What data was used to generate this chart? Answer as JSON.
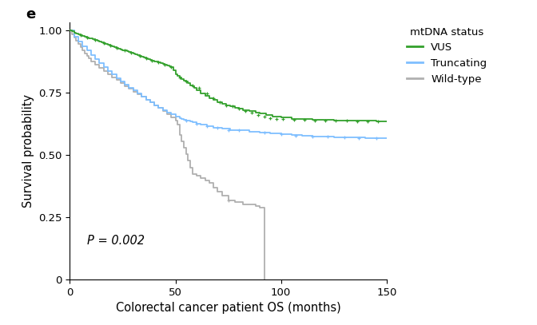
{
  "title_label": "e",
  "xlabel": "Colorectal cancer patient OS (months)",
  "ylabel": "Survival probability",
  "pvalue_text": "P = 0.002",
  "legend_title": "mtDNA status",
  "legend_entries": [
    "VUS",
    "Truncating",
    "Wild-type"
  ],
  "colors": {
    "VUS": "#33a02c",
    "Truncating": "#7fbfff",
    "Wild-type": "#b0b0b0"
  },
  "xlim": [
    0,
    150
  ],
  "ylim": [
    0,
    1.03
  ],
  "xticks": [
    0,
    50,
    100,
    150
  ],
  "yticks": [
    0,
    0.25,
    0.5,
    0.75,
    1.0
  ],
  "VUS_x": [
    0,
    1,
    2,
    3,
    4,
    5,
    6,
    7,
    8,
    9,
    10,
    11,
    12,
    13,
    14,
    15,
    16,
    17,
    18,
    19,
    20,
    21,
    22,
    23,
    24,
    25,
    26,
    27,
    28,
    29,
    30,
    31,
    32,
    33,
    34,
    35,
    36,
    37,
    38,
    39,
    40,
    41,
    42,
    43,
    44,
    45,
    46,
    47,
    48,
    49,
    50,
    51,
    52,
    53,
    54,
    55,
    56,
    57,
    58,
    59,
    60,
    62,
    64,
    66,
    68,
    70,
    72,
    74,
    76,
    78,
    80,
    82,
    85,
    88,
    90,
    93,
    96,
    100,
    105,
    110,
    115,
    120,
    125,
    130,
    135,
    140,
    145,
    150
  ],
  "VUS_y": [
    1.0,
    0.995,
    0.99,
    0.987,
    0.984,
    0.981,
    0.978,
    0.975,
    0.972,
    0.969,
    0.966,
    0.963,
    0.96,
    0.957,
    0.954,
    0.951,
    0.948,
    0.945,
    0.942,
    0.939,
    0.936,
    0.933,
    0.93,
    0.927,
    0.924,
    0.921,
    0.918,
    0.915,
    0.912,
    0.909,
    0.906,
    0.903,
    0.9,
    0.897,
    0.894,
    0.891,
    0.888,
    0.885,
    0.882,
    0.879,
    0.876,
    0.873,
    0.87,
    0.867,
    0.864,
    0.861,
    0.858,
    0.855,
    0.852,
    0.838,
    0.824,
    0.818,
    0.811,
    0.805,
    0.799,
    0.793,
    0.787,
    0.78,
    0.774,
    0.768,
    0.758,
    0.748,
    0.738,
    0.728,
    0.72,
    0.712,
    0.704,
    0.7,
    0.695,
    0.69,
    0.685,
    0.68,
    0.675,
    0.67,
    0.665,
    0.66,
    0.655,
    0.65,
    0.645,
    0.643,
    0.641,
    0.64,
    0.639,
    0.638,
    0.637,
    0.636,
    0.635,
    0.635
  ],
  "Truncating_x": [
    0,
    2,
    4,
    6,
    8,
    10,
    12,
    14,
    16,
    18,
    20,
    22,
    24,
    26,
    28,
    30,
    32,
    34,
    36,
    38,
    40,
    42,
    44,
    46,
    48,
    50,
    52,
    53,
    54,
    55,
    56,
    57,
    58,
    60,
    62,
    65,
    68,
    72,
    76,
    80,
    85,
    90,
    95,
    100,
    105,
    110,
    115,
    120,
    125,
    130,
    135,
    140,
    145,
    150
  ],
  "Truncating_y": [
    1.0,
    0.975,
    0.955,
    0.935,
    0.918,
    0.9,
    0.883,
    0.867,
    0.851,
    0.836,
    0.822,
    0.808,
    0.795,
    0.782,
    0.77,
    0.758,
    0.746,
    0.734,
    0.722,
    0.712,
    0.7,
    0.69,
    0.68,
    0.67,
    0.662,
    0.655,
    0.648,
    0.645,
    0.642,
    0.639,
    0.636,
    0.633,
    0.63,
    0.625,
    0.62,
    0.615,
    0.61,
    0.605,
    0.6,
    0.598,
    0.593,
    0.588,
    0.585,
    0.582,
    0.579,
    0.577,
    0.575,
    0.573,
    0.571,
    0.57,
    0.569,
    0.568,
    0.567,
    0.566
  ],
  "Wild_x": [
    0,
    1,
    2,
    3,
    4,
    5,
    6,
    7,
    8,
    9,
    10,
    12,
    14,
    16,
    18,
    20,
    22,
    24,
    26,
    28,
    30,
    32,
    34,
    36,
    38,
    40,
    42,
    44,
    46,
    48,
    50,
    51,
    52,
    53,
    54,
    55,
    56,
    57,
    58,
    60,
    62,
    64,
    66,
    68,
    70,
    72,
    75,
    78,
    82,
    88,
    90,
    92
  ],
  "Wild_y": [
    1.0,
    0.985,
    0.97,
    0.957,
    0.944,
    0.932,
    0.92,
    0.908,
    0.897,
    0.886,
    0.875,
    0.862,
    0.849,
    0.836,
    0.824,
    0.812,
    0.8,
    0.788,
    0.776,
    0.765,
    0.754,
    0.743,
    0.733,
    0.722,
    0.712,
    0.7,
    0.688,
    0.675,
    0.663,
    0.65,
    0.637,
    0.62,
    0.58,
    0.555,
    0.528,
    0.502,
    0.476,
    0.45,
    0.424,
    0.415,
    0.406,
    0.397,
    0.388,
    0.37,
    0.352,
    0.335,
    0.318,
    0.31,
    0.302,
    0.295,
    0.288,
    0.0
  ],
  "VUS_censor_x": [
    5,
    8,
    12,
    16,
    19,
    22,
    26,
    29,
    33,
    36,
    39,
    42,
    45,
    48,
    52,
    55,
    58,
    61,
    65,
    68,
    71,
    74,
    77,
    80,
    83,
    86,
    89,
    92,
    95,
    98,
    101,
    106,
    111,
    116,
    121,
    126,
    131,
    136,
    141,
    146
  ],
  "VUS_censor_y": [
    0.981,
    0.972,
    0.96,
    0.948,
    0.939,
    0.93,
    0.918,
    0.909,
    0.897,
    0.888,
    0.879,
    0.87,
    0.861,
    0.852,
    0.811,
    0.793,
    0.78,
    0.768,
    0.748,
    0.728,
    0.712,
    0.7,
    0.695,
    0.685,
    0.675,
    0.668,
    0.66,
    0.655,
    0.648,
    0.645,
    0.643,
    0.641,
    0.64,
    0.639,
    0.638,
    0.637,
    0.636,
    0.635,
    0.635,
    0.635
  ],
  "Truncating_censor_x": [
    55,
    60,
    65,
    70,
    75,
    80,
    92,
    100,
    107,
    115,
    122,
    130,
    137,
    145
  ],
  "Truncating_censor_y": [
    0.639,
    0.625,
    0.615,
    0.608,
    0.6,
    0.598,
    0.588,
    0.582,
    0.578,
    0.575,
    0.573,
    0.57,
    0.568,
    0.567
  ],
  "Wild_censor_x": [
    75
  ],
  "Wild_censor_y": [
    0.318
  ],
  "background_color": "#ffffff",
  "font_size": 10.5
}
